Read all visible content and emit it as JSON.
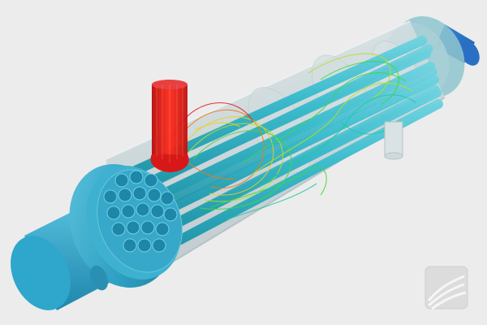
{
  "scene": {
    "subject": "shell-and-tube-heat-exchanger",
    "background_color": "#ececec",
    "shell_color": "#bfcfd4",
    "tube_color": "#2fb8c9",
    "end_cap_color": "#2a9fc2",
    "hot_inlet_color": "#e01818",
    "streamline_colors": [
      "#e01818",
      "#f07a10",
      "#e8d020",
      "#b8e020",
      "#40d840",
      "#20c8a0"
    ]
  },
  "watermark": {
    "icon": "logo-icon"
  }
}
